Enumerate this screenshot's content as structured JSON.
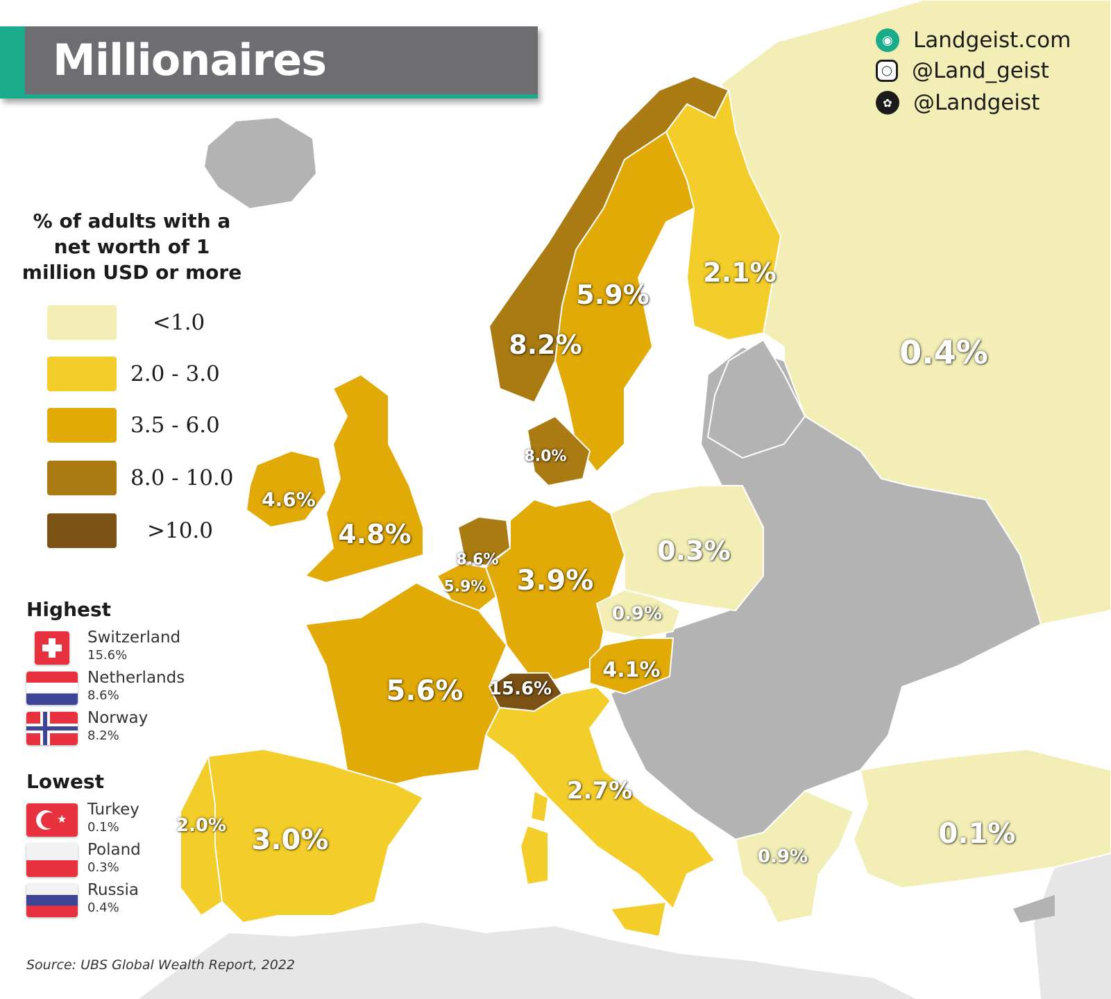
{
  "title": "Millionaires",
  "social": [
    {
      "icon": "globe-icon",
      "text": "Landgeist.com"
    },
    {
      "icon": "instagram-icon",
      "text": "@Land_geist"
    },
    {
      "icon": "twitter-icon",
      "text": "@Landgeist"
    }
  ],
  "legend": {
    "title": "% of adults with a net worth of 1 million USD or more",
    "items": [
      {
        "label": "<1.0",
        "color": "#f2eeb6"
      },
      {
        "label": "2.0  -  3.0",
        "color": "#f3ce2a"
      },
      {
        "label": "3.5  -  6.0",
        "color": "#e2aa06"
      },
      {
        "label": "8.0  - 10.0",
        "color": "#a97b12"
      },
      {
        "label": ">10.0",
        "color": "#7b5214"
      }
    ],
    "no_data_color": "#b3b3b3"
  },
  "highest": {
    "heading": "Highest",
    "items": [
      {
        "country": "Switzerland",
        "value": "15.6%"
      },
      {
        "country": "Netherlands",
        "value": "8.6%"
      },
      {
        "country": "Norway",
        "value": "8.2%"
      }
    ]
  },
  "lowest": {
    "heading": "Lowest",
    "items": [
      {
        "country": "Turkey",
        "value": "0.1%"
      },
      {
        "country": "Poland",
        "value": "0.3%"
      },
      {
        "country": "Russia",
        "value": "0.4%"
      }
    ]
  },
  "source": "Source: UBS Global Wealth Report, 2022",
  "map_labels": {
    "russia": "0.4%",
    "finland": "2.1%",
    "sweden": "5.9%",
    "norway": "8.2%",
    "denmark": "8.0%",
    "ireland": "4.6%",
    "uk": "4.8%",
    "netherlands": "8.6%",
    "belgium": "5.9%",
    "germany": "3.9%",
    "poland": "0.3%",
    "czechia": "0.9%",
    "austria": "4.1%",
    "switzerland": "15.6%",
    "france": "5.6%",
    "italy": "2.7%",
    "spain": "3.0%",
    "portugal": "2.0%",
    "greece": "0.9%",
    "turkey": "0.1%"
  }
}
